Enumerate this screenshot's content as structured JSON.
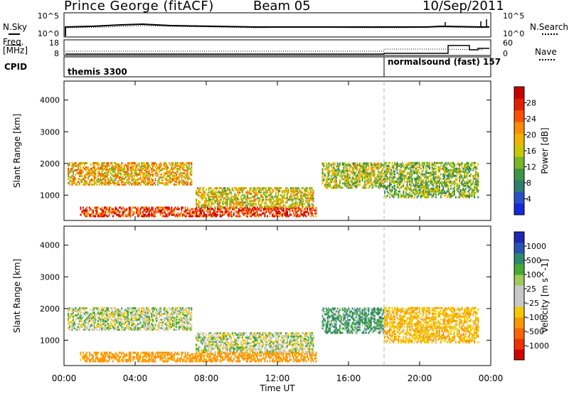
{
  "header": {
    "station": "Prince George (fitACF)",
    "beam": "Beam 05",
    "date": "10/Sep/2011"
  },
  "noise_panel": {
    "left_label": "N.Sky",
    "right_label": "N.Search",
    "left_ticks": [
      "10^5",
      "10^0"
    ],
    "right_ticks": [
      "10^5",
      "10^0"
    ]
  },
  "freq_panel": {
    "left_label_line1": "Freq.",
    "left_label_line2": "[MHz]",
    "right_label": "Nave",
    "left_ticks": [
      "18",
      "8"
    ],
    "right_ticks": [
      "60",
      "0"
    ]
  },
  "cpid_panel": {
    "label": "CPID",
    "programs": [
      {
        "name": "themis 3300",
        "start": "00:00"
      },
      {
        "name": "normalsound (fast) 157",
        "start": "18:00"
      }
    ]
  },
  "colors": {
    "power_scale": [
      "#1428dc",
      "#2850c8",
      "#2e7d6e",
      "#3c9646",
      "#78b428",
      "#c8c800",
      "#f0b400",
      "#ff8c00",
      "#ff5000",
      "#e61e00",
      "#c80000"
    ],
    "velocity_scale": [
      "#1e28b4",
      "#2a52b4",
      "#2e8a6e",
      "#46aa32",
      "#a0c85a",
      "#c8c8c8",
      "#c8c8c8",
      "#f5c800",
      "#ff9600",
      "#ff6400",
      "#f03200",
      "#d20000"
    ],
    "ground_scatter": "#c8c8c8",
    "marker_line": "#b4b4b4"
  },
  "chart_data": [
    {
      "type": "heatmap",
      "name": "power",
      "ylabel": "Slant Range [km]",
      "colorbar_label": "Power [dB]",
      "colorbar_ticks": [
        "28",
        "24",
        "20",
        "16",
        "12",
        "8",
        "4"
      ],
      "y_ticks": [
        "4000",
        "3000",
        "2000",
        "1000"
      ],
      "ylim": [
        200,
        4600
      ],
      "xlim_hours": [
        0,
        24
      ],
      "scatter_regions": [
        {
          "feature": "near-range strong echoes",
          "start_hour": 0.9,
          "end_hour": 14.2,
          "range_low_km": 300,
          "range_high_km": 600,
          "power_db": 26
        },
        {
          "feature": "morning band (01-07 UT)",
          "start_hour": 0.2,
          "end_hour": 7.2,
          "range_low_km": 1300,
          "range_high_km": 2000,
          "power_db": 18
        },
        {
          "feature": "midday band (07-14 UT)",
          "start_hour": 7.4,
          "end_hour": 14.0,
          "range_low_km": 600,
          "range_high_km": 1200,
          "power_db": 16
        },
        {
          "feature": "evening band (14-18 UT)",
          "start_hour": 14.5,
          "end_hour": 18.0,
          "range_low_km": 1200,
          "range_high_km": 2000,
          "power_db": 14
        },
        {
          "feature": "late band (18-22 UT)",
          "start_hour": 18.0,
          "end_hour": 23.3,
          "range_low_km": 900,
          "range_high_km": 2000,
          "power_db": 12
        }
      ]
    },
    {
      "type": "heatmap",
      "name": "velocity",
      "ylabel": "Slant Range [km]",
      "colorbar_label": "Velocity [m s^-1]",
      "colorbar_ticks": [
        "1000",
        "500",
        "100",
        "25",
        "-25",
        "-100",
        "-500",
        "-1000"
      ],
      "y_ticks": [
        "4000",
        "3000",
        "2000",
        "1000"
      ],
      "ylim": [
        200,
        4600
      ],
      "xlim_hours": [
        0,
        24
      ],
      "scatter_regions": [
        {
          "feature": "near-range slow echoes",
          "start_hour": 0.9,
          "end_hour": 14.2,
          "range_low_km": 300,
          "range_high_km": 600,
          "velocity_ms": -150
        },
        {
          "feature": "morning band (01-07 UT)",
          "start_hour": 0.2,
          "end_hour": 7.2,
          "range_low_km": 1300,
          "range_high_km": 2000,
          "velocity_ms": 0
        },
        {
          "feature": "midday band (07-14 UT)",
          "start_hour": 7.4,
          "end_hour": 14.0,
          "range_low_km": 600,
          "range_high_km": 1200,
          "velocity_ms": 0
        },
        {
          "feature": "evening band (14-18 UT)",
          "start_hour": 14.5,
          "end_hour": 18.0,
          "range_low_km": 1200,
          "range_high_km": 2000,
          "velocity_ms": 60
        },
        {
          "feature": "late band (18-22 UT)",
          "start_hour": 18.0,
          "end_hour": 23.3,
          "range_low_km": 900,
          "range_high_km": 2000,
          "velocity_ms": -80
        }
      ]
    }
  ],
  "xaxis": {
    "label": "Time UT",
    "ticks": [
      "00:00",
      "04:00",
      "08:00",
      "12:00",
      "16:00",
      "20:00",
      "00:00"
    ]
  }
}
